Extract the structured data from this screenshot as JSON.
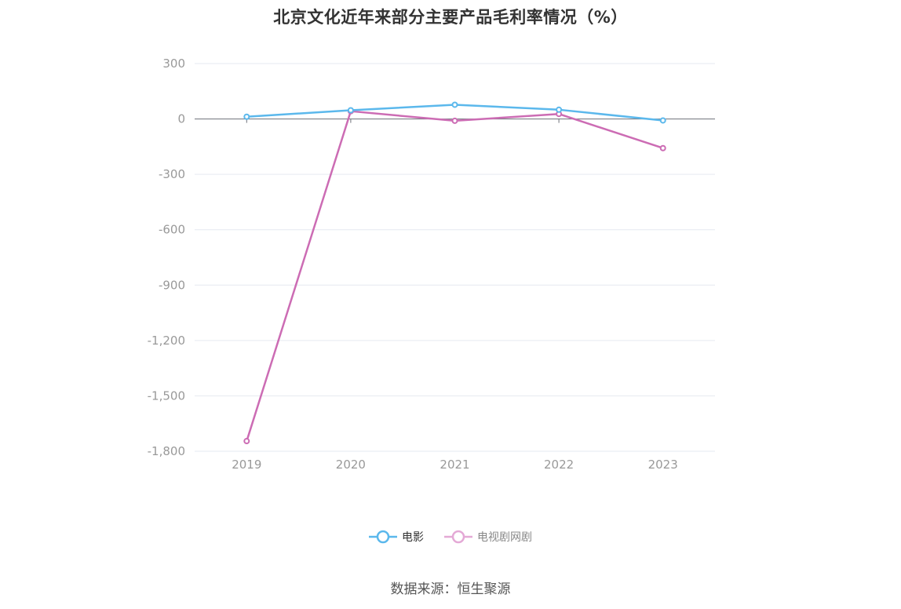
{
  "title": "北京文化近年来部分主要产品毛利率情况（%）",
  "source": "数据来源：恒生聚源",
  "colors": {
    "grid": "#e6e9f0",
    "axis_label": "#999999",
    "zero_line": "#6e7079"
  },
  "chart_data": {
    "type": "line",
    "title": "北京文化近年来部分主要产品毛利率情况（%）",
    "categories": [
      "2019",
      "2020",
      "2021",
      "2022",
      "2023"
    ],
    "ylim": [
      -1800,
      300
    ],
    "yticks": [
      300,
      0,
      -300,
      -600,
      -900,
      -1200,
      -1500,
      -1800
    ],
    "ytick_labels": [
      "300",
      "0",
      "-300",
      "-600",
      "-900",
      "-1,200",
      "-1,500",
      "-1,800"
    ],
    "grid": true,
    "legend_position": "bottom-center",
    "series": [
      {
        "name": "电影",
        "color": "#5bb8ec",
        "values": [
          12,
          47,
          77,
          50,
          -8
        ]
      },
      {
        "name": "电视剧网剧",
        "color": "#cc6cb4",
        "values": [
          -1745,
          42,
          -10,
          27,
          -158
        ]
      }
    ]
  }
}
